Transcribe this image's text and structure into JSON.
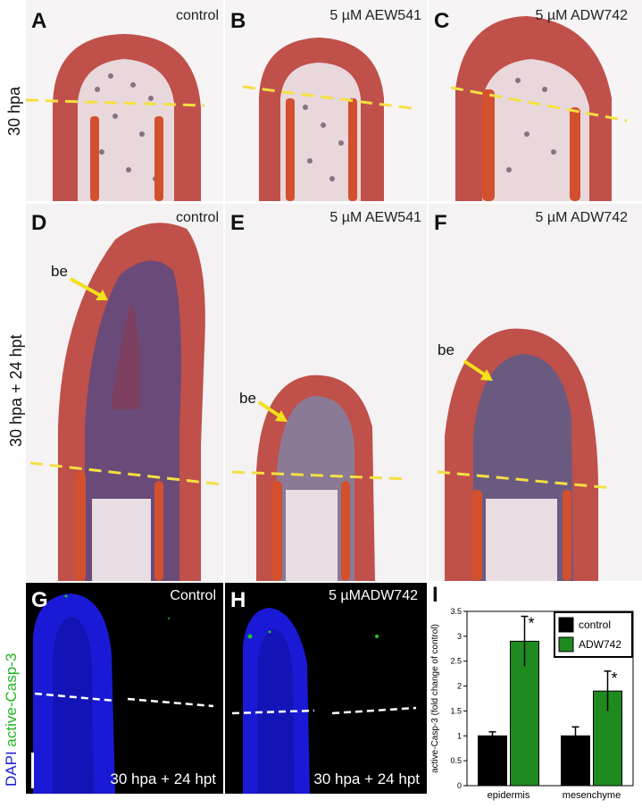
{
  "figure": {
    "rows": {
      "top_label": "30 hpa",
      "middle_label": "30 hpa + 24 hpt"
    },
    "panels": {
      "A": {
        "letter": "A",
        "title": "control"
      },
      "B": {
        "letter": "B",
        "title": "5 µM AEW541"
      },
      "C": {
        "letter": "C",
        "title": "5 µM ADW742"
      },
      "D": {
        "letter": "D",
        "title": "control",
        "annotation": "be"
      },
      "E": {
        "letter": "E",
        "title": "5 µM AEW541",
        "annotation": "be"
      },
      "F": {
        "letter": "F",
        "title": "5 µM ADW742",
        "annotation": "be"
      },
      "G": {
        "letter": "G",
        "title": "Control",
        "bottom": "30 hpa + 24 hpt"
      },
      "H": {
        "letter": "H",
        "title": "5 µMADW742",
        "bottom": "30 hpa + 24 hpt"
      },
      "I": {
        "letter": "I"
      }
    },
    "stain_label": {
      "dapi": "DAPI",
      "casp": "active-Casp-3"
    },
    "colors": {
      "tissue": "#c0504a",
      "dashed_yellow": "#f5e042",
      "arrow_yellow": "#f2e01a",
      "dapi_blue": "#1a1ad6",
      "casp_green": "#22c422",
      "bar_control": "#000000",
      "bar_adw": "#1f8a1f"
    }
  },
  "chart_data": {
    "type": "bar",
    "categories": [
      "epidermis",
      "mesenchyme"
    ],
    "series": [
      {
        "name": "control",
        "values": [
          1.0,
          1.0
        ],
        "errors": [
          0.08,
          0.18
        ]
      },
      {
        "name": "ADW742",
        "values": [
          2.9,
          1.9
        ],
        "errors": [
          0.5,
          0.4
        ]
      }
    ],
    "significance": [
      "*",
      "*"
    ],
    "ylabel": "active-Casp-3 (fold change of control)",
    "ylim": [
      0,
      3.5
    ],
    "yticks": [
      "0",
      "0.5",
      "1",
      "1.5",
      "2",
      "2.5",
      "3",
      "3.5"
    ],
    "legend": "top-right",
    "grid": false
  }
}
